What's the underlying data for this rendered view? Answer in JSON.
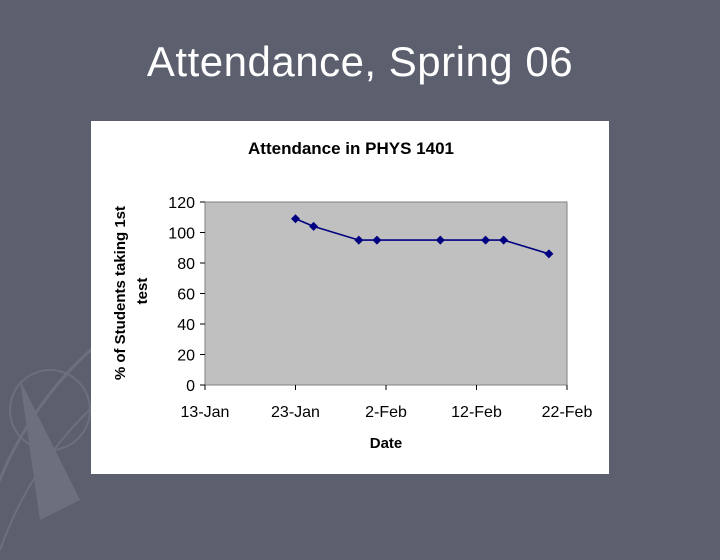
{
  "slide": {
    "title": "Attendance, Spring 06"
  },
  "colors": {
    "slide_background": "#5b5f6e",
    "plot_area": "#c0c0c0",
    "series_line": "#000080"
  },
  "chart_data": {
    "type": "line",
    "title": "Attendance in PHYS 1401",
    "xlabel": "Date",
    "ylabel": "% of Students taking 1st test",
    "x_ticks": [
      "13-Jan",
      "23-Jan",
      "2-Feb",
      "12-Feb",
      "22-Feb"
    ],
    "x_tick_dates": [
      "2006-01-13",
      "2006-01-23",
      "2006-02-02",
      "2006-02-12",
      "2006-02-22"
    ],
    "xlim": [
      "2006-01-13",
      "2006-02-22"
    ],
    "ylim": [
      0,
      120
    ],
    "y_ticks": [
      "0",
      "20",
      "40",
      "60",
      "80",
      "100",
      "120"
    ],
    "grid": false,
    "legend": "none",
    "series": [
      {
        "x": [
          "2006-01-23",
          "2006-01-25",
          "2006-01-30",
          "2006-02-01",
          "2006-02-08",
          "2006-02-13",
          "2006-02-15",
          "2006-02-20"
        ],
        "values": [
          109,
          104,
          95,
          95,
          95,
          95,
          95,
          86
        ]
      }
    ]
  }
}
